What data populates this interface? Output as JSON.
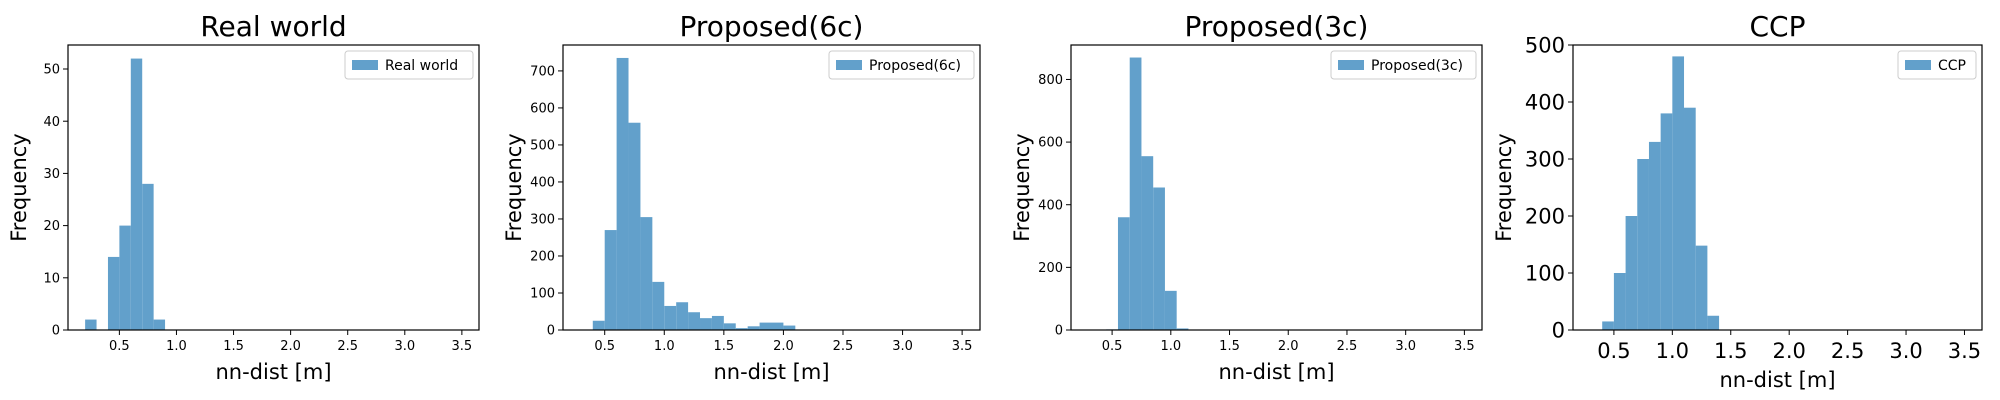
{
  "chart_data": [
    {
      "type": "bar",
      "title": "Real world",
      "xlabel": "nn-dist [m]",
      "ylabel": "Frequency",
      "legend": "Real world",
      "legend_placement": "top-right",
      "xlim": [
        0.05,
        3.65
      ],
      "ylim": [
        0,
        54.6
      ],
      "xticks": [
        0.5,
        1.0,
        1.5,
        2.0,
        2.5,
        3.0,
        3.5
      ],
      "xtick_labels": [
        "0.5",
        "1.0",
        "1.5",
        "2.0",
        "2.5",
        "3.0",
        "3.5"
      ],
      "yticks": [
        0,
        10,
        20,
        30,
        40,
        50
      ],
      "ytick_labels": [
        "0",
        "10",
        "20",
        "30",
        "40",
        "50"
      ],
      "bin_start": 0.2,
      "bin_width": 0.1,
      "values": [
        2,
        0,
        14,
        20,
        52,
        28,
        2
      ],
      "color": "#62a0cb",
      "grid": false
    },
    {
      "type": "bar",
      "title": "Proposed(6c)",
      "xlabel": "nn-dist [m]",
      "ylabel": "Frequency",
      "legend": "Proposed(6c)",
      "legend_placement": "top-right",
      "xlim": [
        0.15,
        3.65
      ],
      "ylim": [
        0,
        770
      ],
      "xticks": [
        0.5,
        1.0,
        1.5,
        2.0,
        2.5,
        3.0,
        3.5
      ],
      "xtick_labels": [
        "0.5",
        "1.0",
        "1.5",
        "2.0",
        "2.5",
        "3.0",
        "3.5"
      ],
      "yticks": [
        0,
        100,
        200,
        300,
        400,
        500,
        600,
        700
      ],
      "ytick_labels": [
        "0",
        "100",
        "200",
        "300",
        "400",
        "500",
        "600",
        "700"
      ],
      "bin_start": 0.4,
      "bin_width": 0.1,
      "values": [
        25,
        270,
        735,
        560,
        305,
        130,
        65,
        75,
        48,
        32,
        38,
        18,
        5,
        10,
        20,
        20,
        12
      ],
      "color": "#62a0cb",
      "grid": false
    },
    {
      "type": "bar",
      "title": "Proposed(3c)",
      "xlabel": "nn-dist [m]",
      "ylabel": "Frequency",
      "legend": "Proposed(3c)",
      "legend_placement": "top-right",
      "xlim": [
        0.15,
        3.65
      ],
      "ylim": [
        0,
        910
      ],
      "xticks": [
        0.5,
        1.0,
        1.5,
        2.0,
        2.5,
        3.0,
        3.5
      ],
      "xtick_labels": [
        "0.5",
        "1.0",
        "1.5",
        "2.0",
        "2.5",
        "3.0",
        "3.5"
      ],
      "yticks": [
        0,
        200,
        400,
        600,
        800
      ],
      "ytick_labels": [
        "0",
        "200",
        "400",
        "600",
        "800"
      ],
      "bin_start": 0.45,
      "bin_width": 0.1,
      "values": [
        2,
        360,
        870,
        555,
        455,
        125,
        5
      ],
      "color": "#62a0cb",
      "grid": false
    },
    {
      "type": "bar",
      "title": "CCP",
      "xlabel": "nn-dist [m]",
      "ylabel": "Frequency",
      "legend": "CCP",
      "legend_placement": "top-right",
      "xlim": [
        0.15,
        3.65
      ],
      "ylim": [
        0,
        500
      ],
      "xticks": [
        0.5,
        1.0,
        1.5,
        2.0,
        2.5,
        3.0,
        3.5
      ],
      "xtick_labels": [
        "0.5",
        "1.0",
        "1.5",
        "2.0",
        "2.5",
        "3.0",
        "3.5"
      ],
      "yticks": [
        0,
        100,
        200,
        300,
        400,
        500
      ],
      "ytick_labels": [
        "0",
        "100",
        "200",
        "300",
        "400",
        "500"
      ],
      "bin_start": 0.4,
      "bin_width": 0.1,
      "values": [
        15,
        100,
        200,
        300,
        330,
        380,
        480,
        390,
        148,
        25
      ],
      "color": "#62a0cb",
      "grid": false
    }
  ]
}
